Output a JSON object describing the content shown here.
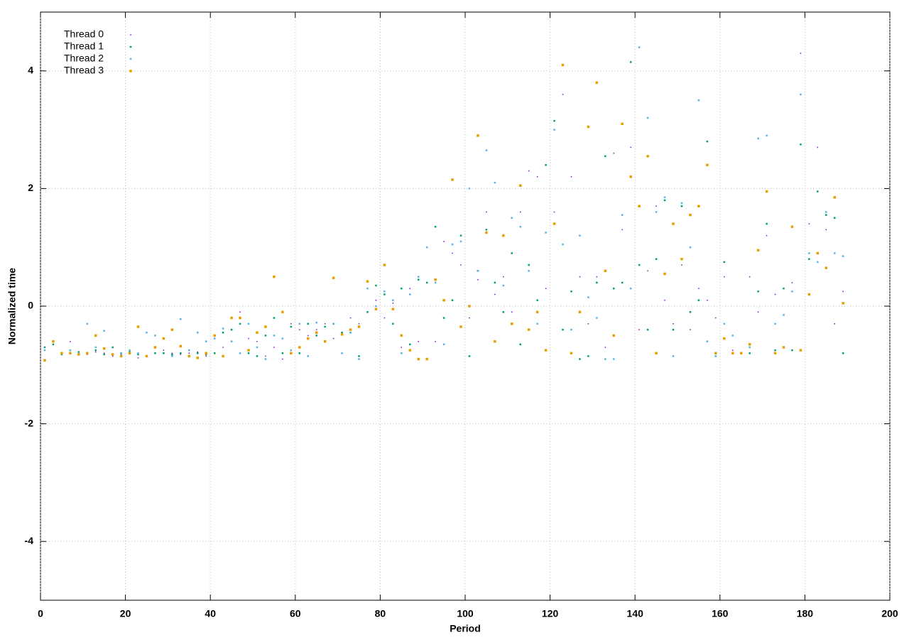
{
  "chart_data": {
    "type": "scatter",
    "xlabel": "Period",
    "ylabel": "Normalized time",
    "xlim": [
      0,
      200
    ],
    "ylim": [
      -5,
      5
    ],
    "xticks": [
      0,
      20,
      40,
      60,
      80,
      100,
      120,
      140,
      160,
      180,
      200
    ],
    "yticks": [
      -4,
      -2,
      0,
      2,
      4
    ],
    "grid": true,
    "legend": "top-left",
    "x": [
      1,
      3,
      5,
      7,
      9,
      11,
      13,
      15,
      17,
      19,
      21,
      23,
      25,
      27,
      29,
      31,
      33,
      35,
      37,
      39,
      41,
      43,
      45,
      47,
      49,
      51,
      53,
      55,
      57,
      59,
      61,
      63,
      65,
      67,
      69,
      71,
      73,
      75,
      77,
      79,
      81,
      83,
      85,
      87,
      89,
      91,
      93,
      95,
      97,
      99,
      101,
      103,
      105,
      107,
      109,
      111,
      113,
      115,
      117,
      119,
      121,
      123,
      125,
      127,
      129,
      131,
      133,
      135,
      137,
      139,
      141,
      143,
      145,
      147,
      149,
      151,
      153,
      155,
      157,
      159,
      161,
      163,
      165,
      167,
      169,
      171,
      173,
      175,
      177,
      179,
      181,
      183,
      185,
      187,
      189
    ],
    "series": [
      {
        "name": "Thread 0",
        "color": "#9400d3",
        "values": [
          -0.75,
          -0.6,
          -0.8,
          -0.6,
          -0.8,
          -0.82,
          -0.78,
          -0.8,
          -0.85,
          -0.82,
          -0.8,
          -0.88,
          -0.85,
          -0.8,
          -0.75,
          -0.8,
          -0.82,
          -0.8,
          -0.78,
          -0.85,
          -0.8,
          -0.7,
          -0.6,
          -0.1,
          -0.55,
          -0.6,
          -0.85,
          -0.7,
          -0.9,
          -0.3,
          -0.4,
          -0.5,
          -0.4,
          -0.3,
          -0.55,
          -0.45,
          -0.2,
          -0.3,
          0.3,
          0.1,
          -0.2,
          0.05,
          -0.7,
          0.3,
          -0.6,
          1.0,
          -0.6,
          1.1,
          0.9,
          0.7,
          -0.2,
          0.45,
          1.6,
          0.2,
          0.5,
          -0.1,
          1.6,
          2.3,
          2.2,
          0.3,
          1.6,
          3.6,
          2.2,
          0.5,
          -0.3,
          0.5,
          -0.7,
          2.6,
          1.3,
          2.7,
          -0.4,
          0.6,
          1.7,
          0.1,
          -0.3,
          0.7,
          -0.4,
          0.3,
          0.1,
          -0.2,
          0.5,
          -0.75,
          -0.8,
          0.5,
          -0.1,
          1.2,
          0.2,
          -0.7,
          0.4,
          4.3,
          1.4,
          2.7,
          1.3,
          -0.3,
          0.25
        ]
      },
      {
        "name": "Thread 1",
        "color": "#009e73",
        "values": [
          -0.7,
          -0.65,
          -0.82,
          -0.8,
          -0.78,
          -0.8,
          -0.75,
          -0.82,
          -0.7,
          -0.8,
          -0.78,
          -0.82,
          -0.85,
          -0.8,
          -0.8,
          -0.82,
          -0.8,
          -0.85,
          -0.8,
          -0.82,
          -0.8,
          -0.45,
          -0.4,
          -0.3,
          -0.8,
          -0.85,
          -0.5,
          -0.2,
          -0.8,
          -0.35,
          -0.8,
          -0.3,
          -0.5,
          -0.35,
          -0.3,
          -0.45,
          -0.45,
          -0.85,
          -0.1,
          0.35,
          0.2,
          -0.3,
          0.3,
          -0.65,
          0.45,
          0.4,
          1.35,
          -0.2,
          0.1,
          1.2,
          -0.85,
          0.6,
          1.3,
          0.4,
          -0.1,
          0.9,
          -0.65,
          0.7,
          0.1,
          2.4,
          3.15,
          -0.4,
          0.25,
          -0.9,
          -0.85,
          0.4,
          2.55,
          0.3,
          0.4,
          4.15,
          0.7,
          -0.4,
          0.8,
          1.8,
          -0.4,
          1.7,
          -0.1,
          0.1,
          2.8,
          -0.85,
          0.75,
          -0.8,
          -0.8,
          -0.8,
          0.25,
          1.4,
          -0.75,
          0.3,
          -0.75,
          2.75,
          0.8,
          1.95,
          1.55,
          1.5,
          -0.8
        ]
      },
      {
        "name": "Thread 2",
        "color": "#56b4e9",
        "values": [
          -0.75,
          -0.6,
          -0.8,
          -0.75,
          -0.8,
          -0.3,
          -0.7,
          -0.42,
          -0.82,
          -0.8,
          -0.75,
          -0.8,
          -0.45,
          -0.5,
          -0.55,
          -0.85,
          -0.22,
          -0.75,
          -0.45,
          -0.6,
          -0.55,
          -0.38,
          -0.6,
          -0.8,
          -0.3,
          -0.7,
          -0.9,
          -0.5,
          -0.55,
          -0.75,
          -0.3,
          -0.85,
          -0.28,
          -0.6,
          -0.3,
          -0.8,
          -0.45,
          -0.9,
          0.3,
          0.0,
          0.25,
          0.1,
          -0.8,
          0.2,
          0.5,
          1.0,
          0.4,
          -0.65,
          1.05,
          1.1,
          2.0,
          0.6,
          2.65,
          2.1,
          0.35,
          1.5,
          1.35,
          0.6,
          -0.3,
          1.25,
          3.0,
          1.05,
          -0.4,
          1.2,
          0.15,
          -0.2,
          -0.9,
          -0.9,
          1.55,
          0.3,
          4.4,
          3.2,
          1.6,
          1.85,
          -0.85,
          1.75,
          1.0,
          3.5,
          -0.6,
          -0.85,
          -0.3,
          -0.5,
          -0.8,
          -0.7,
          2.85,
          2.9,
          -0.3,
          -0.15,
          0.25,
          3.6,
          0.9,
          0.75,
          1.6,
          0.9,
          0.85
        ]
      },
      {
        "name": "Thread 3",
        "color": "#e69f00",
        "values": [
          -0.92,
          -0.6,
          -0.8,
          -0.8,
          -0.82,
          -0.8,
          -0.5,
          -0.72,
          -0.82,
          -0.85,
          -0.8,
          -0.35,
          -0.85,
          -0.7,
          -0.55,
          -0.4,
          -0.68,
          -0.85,
          -0.88,
          -0.8,
          -0.5,
          -0.85,
          -0.2,
          -0.2,
          -0.75,
          -0.45,
          -0.35,
          0.5,
          -0.1,
          -0.8,
          -0.7,
          -0.55,
          -0.45,
          -0.6,
          0.48,
          -0.48,
          -0.4,
          -0.35,
          0.42,
          -0.05,
          0.7,
          -0.05,
          -0.5,
          -0.75,
          -0.9,
          -0.9,
          0.45,
          0.1,
          2.15,
          -0.35,
          0.0,
          2.9,
          1.25,
          -0.6,
          1.2,
          -0.3,
          2.05,
          -0.4,
          -0.1,
          -0.75,
          1.4,
          4.1,
          -0.8,
          -0.1,
          3.05,
          3.8,
          0.6,
          -0.5,
          3.1,
          2.2,
          1.7,
          2.55,
          -0.8,
          0.55,
          1.4,
          0.8,
          1.55,
          1.7,
          2.4,
          -0.8,
          -0.55,
          -0.8,
          -0.8,
          -0.65,
          0.95,
          1.95,
          -0.8,
          -0.7,
          1.35,
          -0.75,
          0.2,
          0.9,
          0.65,
          1.85,
          0.05
        ]
      }
    ]
  }
}
